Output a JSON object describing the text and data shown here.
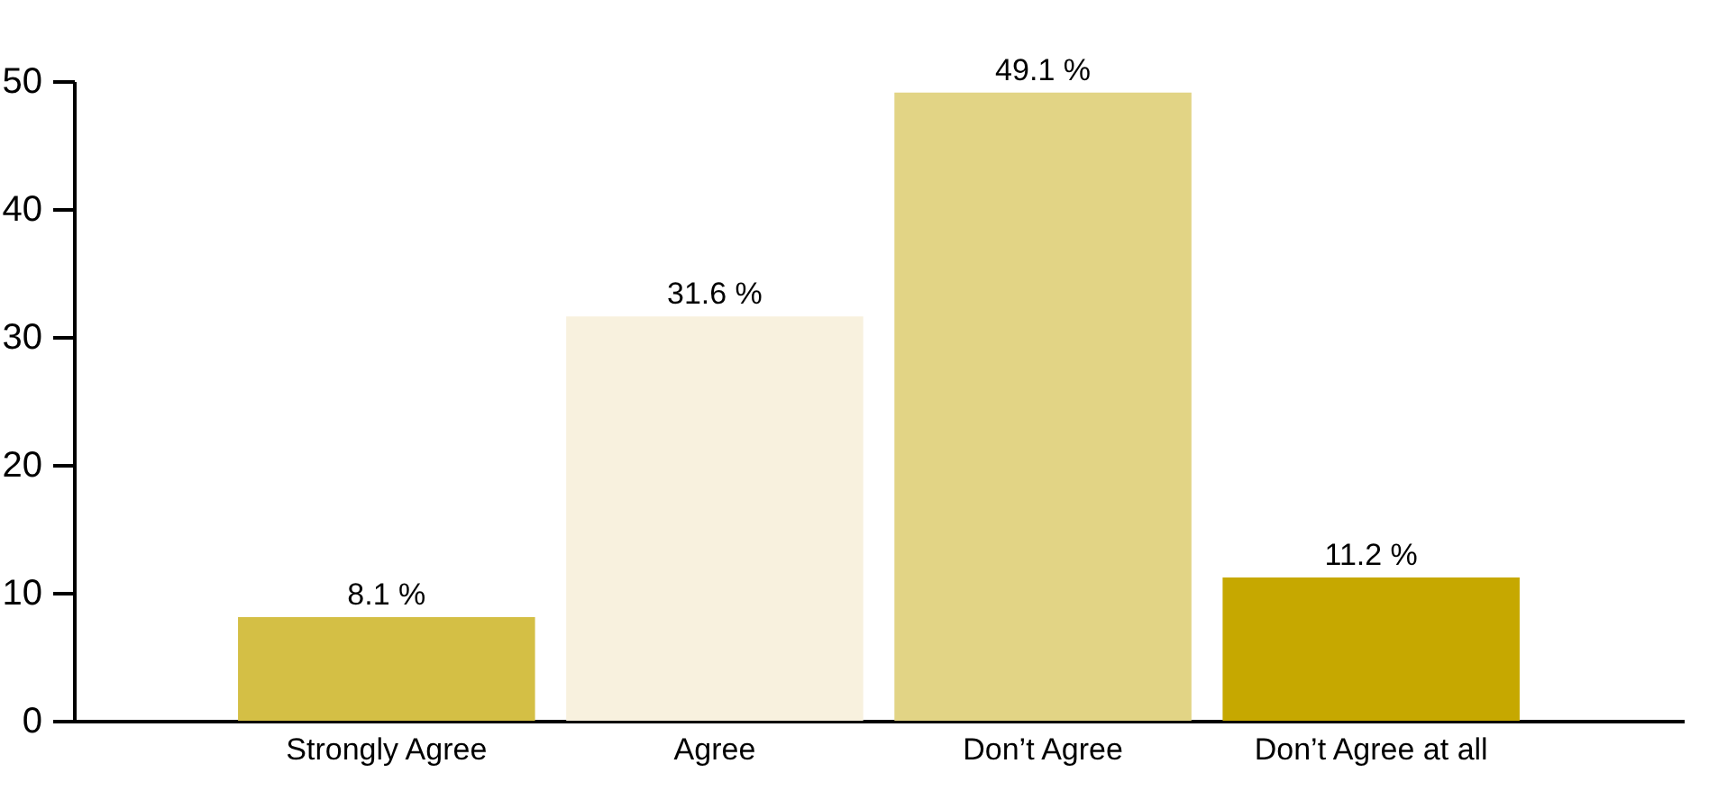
{
  "chart_data": {
    "type": "bar",
    "categories": [
      "Strongly Agree",
      "Agree",
      "Don’t Agree",
      "Don’t Agree at all"
    ],
    "values": [
      8.1,
      31.6,
      49.1,
      11.2
    ],
    "colors": [
      "#d4bf45",
      "#f8f1de",
      "#e2d485",
      "#c6a800"
    ],
    "value_labels": [
      "8.1 %",
      "31.6 %",
      "49.1 %",
      "11.2 %"
    ],
    "ylim": [
      0,
      50
    ],
    "yticks": [
      0,
      10,
      20,
      30,
      40,
      50
    ],
    "grid": false
  }
}
